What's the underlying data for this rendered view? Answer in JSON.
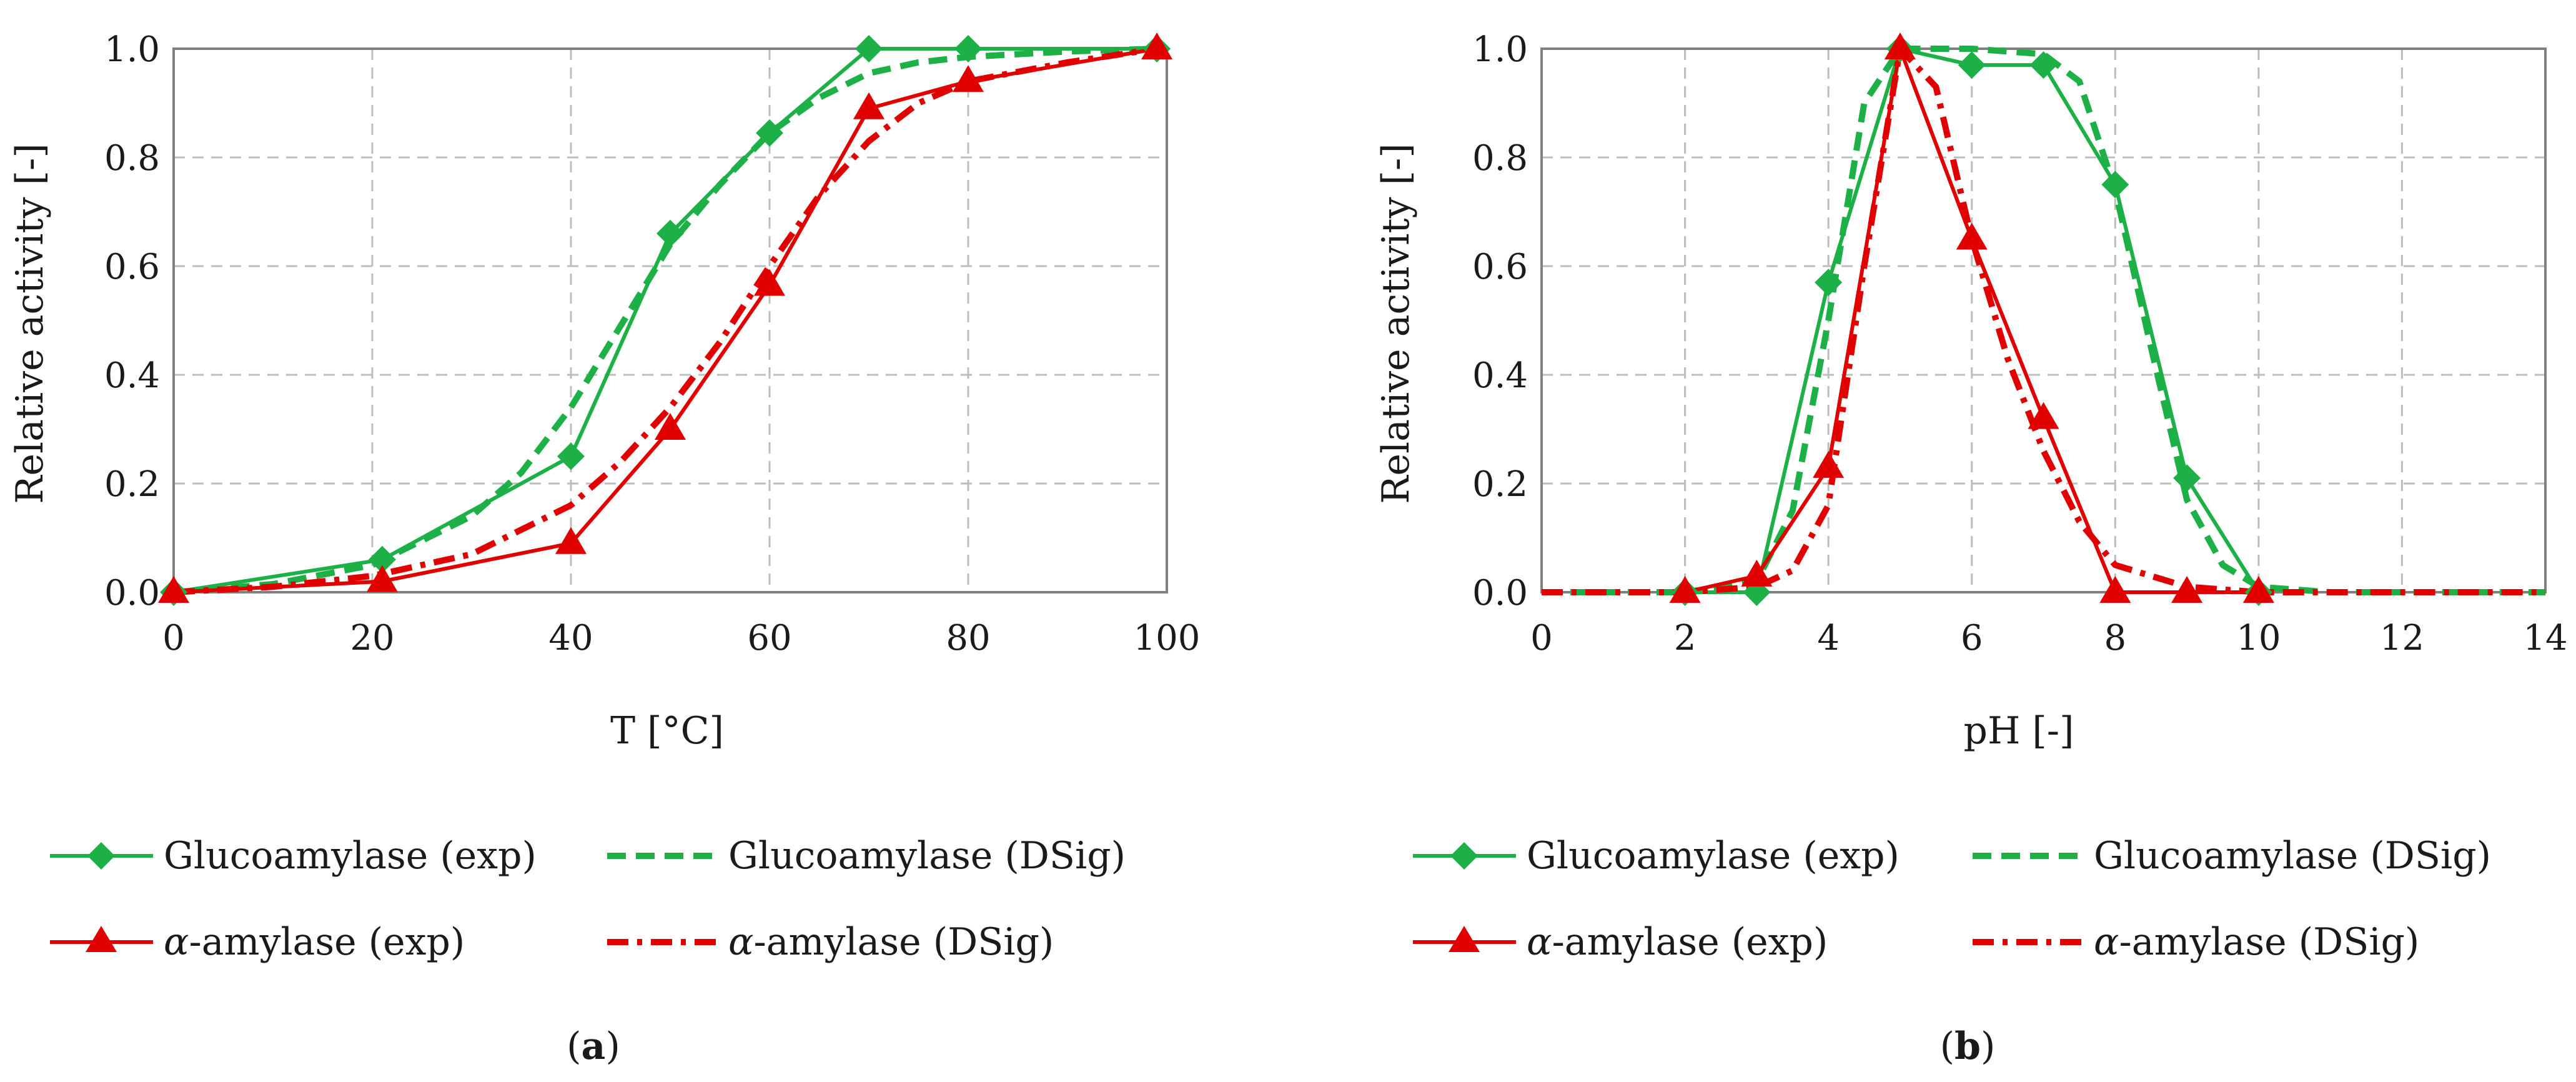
{
  "colors": {
    "green": "#1DB046",
    "red": "#E00000",
    "grid": "#BDBDBD",
    "axis": "#808080"
  },
  "legend": {
    "gluco_exp": "Glucoamylase (exp)",
    "gluco_dsig": "Glucoamylase (DSig)",
    "alpha_exp_greek": "α",
    "alpha_exp_rest": "-amylase (exp)",
    "alpha_dsig_greek": "α",
    "alpha_dsig_rest": "-amylase (DSig)"
  },
  "captions": {
    "a": {
      "open": "(",
      "letter": "a",
      "close": ")"
    },
    "b": {
      "open": "(",
      "letter": "b",
      "close": ")"
    }
  },
  "chart_data": [
    {
      "id": "a",
      "type": "line",
      "xlabel": "T [°C]",
      "ylabel": "Relative activity [-]",
      "xlim": [
        0,
        100
      ],
      "ylim": [
        0,
        1
      ],
      "xticks": [
        0,
        20,
        40,
        60,
        80,
        100
      ],
      "xtick_labels": [
        "0",
        "20",
        "40",
        "60",
        "80",
        "100"
      ],
      "yticks": [
        0,
        0.2,
        0.4,
        0.6,
        0.8,
        1.0
      ],
      "ytick_labels": [
        "0.0",
        "0.2",
        "0.4",
        "0.6",
        "0.8",
        "1.0"
      ],
      "grid": true,
      "series": [
        {
          "name": "Glucoamylase (exp)",
          "key": "gluco_exp",
          "color": "green",
          "style": "solid",
          "marker": "diamond",
          "x": [
            0,
            21,
            40,
            50,
            60,
            70,
            80,
            99
          ],
          "y": [
            0.0,
            0.06,
            0.25,
            0.66,
            0.845,
            1.0,
            1.0,
            1.0
          ]
        },
        {
          "name": "Glucoamylase (DSig)",
          "key": "gluco_dsig",
          "color": "green",
          "style": "dashed",
          "marker": "none",
          "x": [
            0,
            10,
            20,
            30,
            35,
            40,
            45,
            50,
            55,
            60,
            65,
            70,
            75,
            80,
            90,
            99
          ],
          "y": [
            0.0,
            0.015,
            0.05,
            0.14,
            0.22,
            0.34,
            0.49,
            0.64,
            0.75,
            0.845,
            0.91,
            0.955,
            0.975,
            0.985,
            0.995,
            1.0
          ]
        },
        {
          "name": "α-amylase (exp)",
          "key": "alpha_exp",
          "color": "red",
          "style": "solid",
          "marker": "triangle",
          "x": [
            0,
            21,
            40,
            50,
            60,
            70,
            80,
            99
          ],
          "y": [
            0.0,
            0.02,
            0.09,
            0.3,
            0.565,
            0.89,
            0.94,
            1.0
          ]
        },
        {
          "name": "α-amylase (DSig)",
          "key": "alpha_dsig",
          "color": "red",
          "style": "dashdot",
          "marker": "none",
          "x": [
            0,
            10,
            20,
            30,
            40,
            45,
            50,
            55,
            60,
            65,
            70,
            75,
            80,
            90,
            99
          ],
          "y": [
            0.0,
            0.01,
            0.03,
            0.07,
            0.16,
            0.24,
            0.34,
            0.46,
            0.6,
            0.73,
            0.83,
            0.9,
            0.94,
            0.975,
            1.0
          ]
        }
      ]
    },
    {
      "id": "b",
      "type": "line",
      "xlabel": "pH [-]",
      "ylabel": "Relative activity [-]",
      "xlim": [
        0,
        14
      ],
      "ylim": [
        0,
        1
      ],
      "xticks": [
        0,
        2,
        4,
        6,
        8,
        10,
        12,
        14
      ],
      "xtick_labels": [
        "0",
        "2",
        "4",
        "6",
        "8",
        "10",
        "12",
        "14"
      ],
      "yticks": [
        0,
        0.2,
        0.4,
        0.6,
        0.8,
        1.0
      ],
      "ytick_labels": [
        "0.0",
        "0.2",
        "0.4",
        "0.6",
        "0.8",
        "1.0"
      ],
      "grid": true,
      "series": [
        {
          "name": "Glucoamylase (exp)",
          "key": "gluco_exp",
          "color": "green",
          "style": "solid",
          "marker": "diamond",
          "x": [
            2,
            3,
            4,
            5,
            6,
            7,
            8,
            9,
            10
          ],
          "y": [
            0.0,
            0.0,
            0.57,
            1.0,
            0.97,
            0.97,
            0.75,
            0.21,
            0.0
          ]
        },
        {
          "name": "Glucoamylase (DSig)",
          "key": "gluco_dsig",
          "color": "green",
          "style": "dashed",
          "marker": "none",
          "x": [
            0,
            2,
            3,
            3.5,
            4,
            4.5,
            5,
            6,
            7,
            7.5,
            8,
            8.5,
            9,
            9.5,
            10,
            11,
            14
          ],
          "y": [
            0.0,
            0.0,
            0.02,
            0.15,
            0.5,
            0.9,
            1.0,
            1.0,
            0.99,
            0.94,
            0.74,
            0.45,
            0.17,
            0.05,
            0.01,
            0.0,
            0.0
          ]
        },
        {
          "name": "α-amylase (exp)",
          "key": "alpha_exp",
          "color": "red",
          "style": "solid",
          "marker": "triangle",
          "x": [
            2,
            3,
            4,
            5,
            6,
            7,
            8,
            9,
            10
          ],
          "y": [
            0.0,
            0.03,
            0.23,
            1.0,
            0.65,
            0.32,
            0.0,
            0.0,
            0.0
          ]
        },
        {
          "name": "α-amylase (DSig)",
          "key": "alpha_dsig",
          "color": "red",
          "style": "dashdot",
          "marker": "none",
          "x": [
            0,
            2,
            3,
            3.5,
            4,
            4.5,
            5,
            5.5,
            6,
            6.5,
            7,
            7.5,
            8,
            9,
            10,
            14
          ],
          "y": [
            0.0,
            0.0,
            0.01,
            0.04,
            0.16,
            0.6,
            1.0,
            0.93,
            0.65,
            0.43,
            0.26,
            0.13,
            0.05,
            0.01,
            0.0,
            0.0
          ]
        }
      ]
    }
  ]
}
